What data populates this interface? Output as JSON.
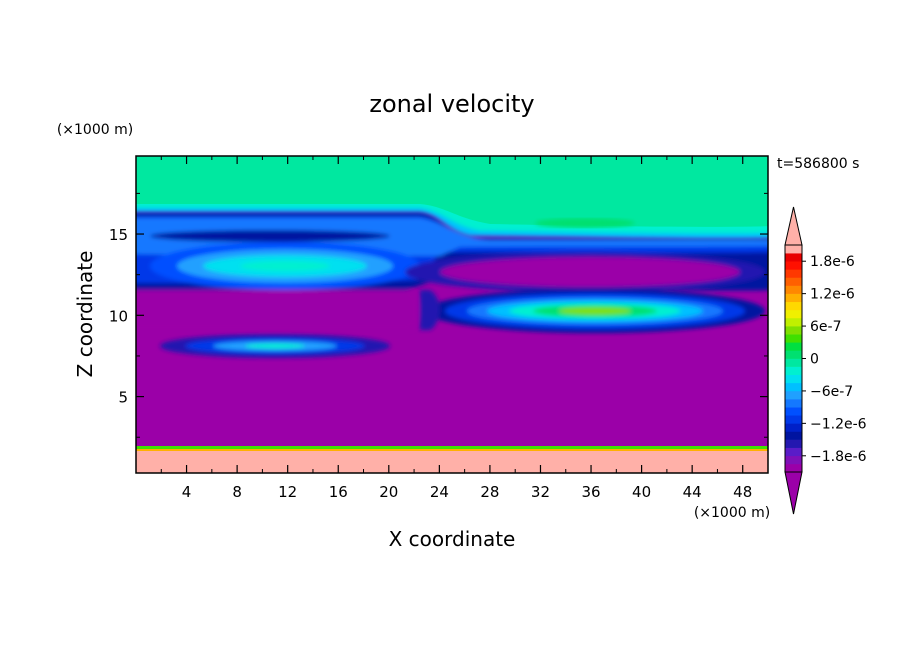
{
  "chart_data": {
    "type": "heatmap",
    "title": "zonal velocity",
    "xlabel": "X coordinate",
    "ylabel": "Z coordinate",
    "x_unit": "(×1000 m)",
    "y_unit": "(×1000 m)",
    "time_label": "t=586800 s",
    "xlim": [
      0,
      50
    ],
    "ylim": [
      0.3,
      19.8
    ],
    "x_ticks": [
      "4",
      "8",
      "12",
      "16",
      "20",
      "24",
      "28",
      "32",
      "36",
      "40",
      "44",
      "48"
    ],
    "x_tick_values": [
      4,
      8,
      12,
      16,
      20,
      24,
      28,
      32,
      36,
      40,
      44,
      48
    ],
    "y_ticks": [
      "5",
      "10",
      "15"
    ],
    "y_tick_values": [
      5,
      10,
      15
    ],
    "colorbar": {
      "labels": [
        "1.8e-6",
        "1.2e-6",
        "6e-7",
        "0",
        "−6e-7",
        "−1.2e-6",
        "−1.8e-6"
      ],
      "label_values": [
        1.8e-06,
        1.2e-06,
        6e-07,
        0,
        -6e-07,
        -1.2e-06,
        -1.8e-06
      ],
      "levels": [
        -2.1e-06,
        -1.95e-06,
        -1.8e-06,
        -1.65e-06,
        -1.5e-06,
        -1.35e-06,
        -1.2e-06,
        -1.05e-06,
        -9e-07,
        -7.5e-07,
        -6e-07,
        -4.5e-07,
        -3e-07,
        -1.5e-07,
        0,
        1.5e-07,
        3e-07,
        4.5e-07,
        6e-07,
        7.5e-07,
        9e-07,
        1.05e-06,
        1.2e-06,
        1.35e-06,
        1.5e-06,
        1.65e-06,
        1.8e-06,
        1.95e-06,
        2.1e-06
      ],
      "colors": [
        "#9b00a8",
        "#7f10b8",
        "#5a1cc8",
        "#2418b0",
        "#0014a0",
        "#0020c8",
        "#0038e8",
        "#0050ff",
        "#1478ff",
        "#20a0ff",
        "#00c0ff",
        "#00e0f0",
        "#00f0d0",
        "#00e8a0",
        "#00e070",
        "#00e040",
        "#40e000",
        "#80e000",
        "#c0f000",
        "#f0f000",
        "#ffd800",
        "#ffb000",
        "#ff8800",
        "#ff6000",
        "#ff3800",
        "#ff1000",
        "#e80000",
        "#ffb0a8"
      ],
      "under_color": "#9b00a8",
      "over_color": "#ffb0a8"
    },
    "field": {
      "background_value": -2.3e-06,
      "features": [
        {
          "region": "top layer",
          "value": 2e-07
        },
        {
          "region": "upper jet band, left",
          "value": -1.4e-06
        },
        {
          "region": "left eddy core",
          "x": 11,
          "z": 12.9,
          "value": -4e-07
        },
        {
          "region": "left lower eddy",
          "x": 11,
          "z": 8.0,
          "value": -5e-07
        },
        {
          "region": "right eddy core",
          "x": 36,
          "z": 10.2,
          "value": 1e-07
        },
        {
          "region": "right upper band",
          "x": 36,
          "z": 12.6,
          "value": -2.3e-06
        },
        {
          "region": "near-surface layer",
          "z": 1.2,
          "value": 2.3e-06
        }
      ]
    }
  }
}
